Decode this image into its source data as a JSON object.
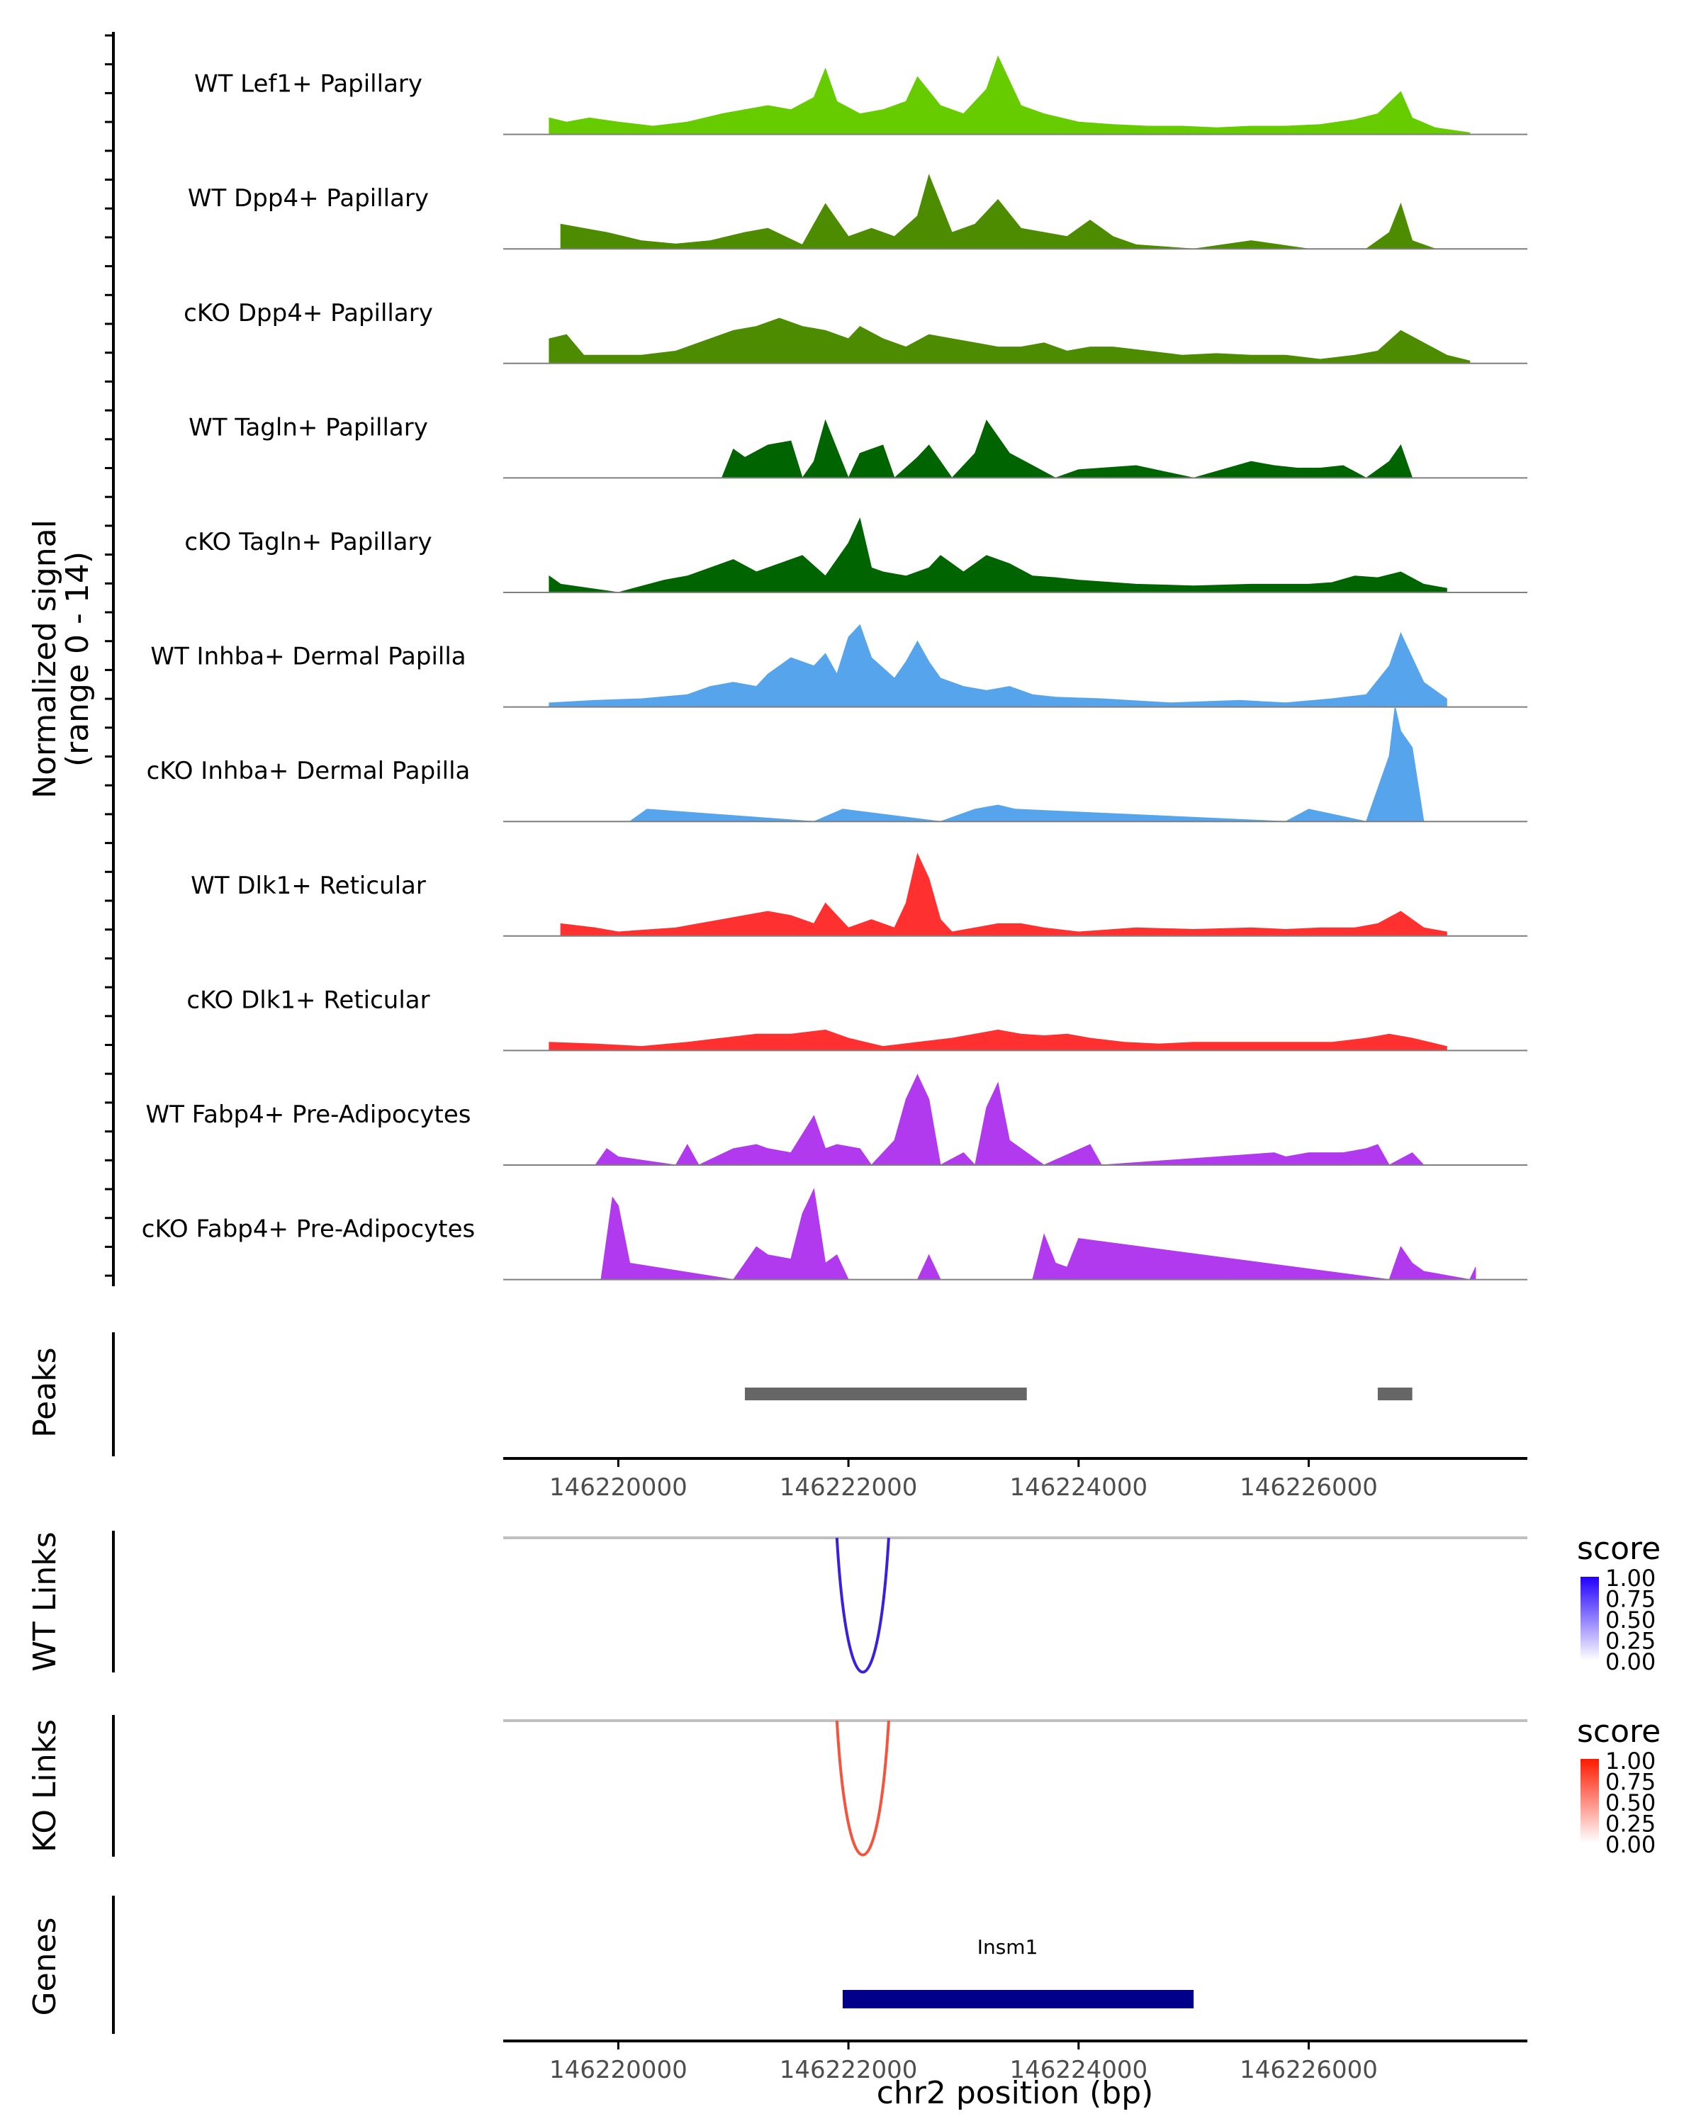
{
  "chart_data": [
    {
      "type": "area",
      "panel": "coverage",
      "ylabel_line1": "Normalized signal",
      "ylabel_line2": "(range 0 - 14)",
      "ylim": [
        0,
        14
      ],
      "xlim": [
        146219000,
        146227900
      ],
      "x_peak_positions_note": "approximate peak shapes read from tracks",
      "series": [
        {
          "name": "WT Lef1+ Papillary",
          "color": "#66CC00",
          "x": [
            146219400,
            146219550,
            146219750,
            146220000,
            146220300,
            146220600,
            146220900,
            146221100,
            146221300,
            146221500,
            146221700,
            146221800,
            146221900,
            146222100,
            146222300,
            146222500,
            146222600,
            146222800,
            146223000,
            146223200,
            146223300,
            146223500,
            146223700,
            146224000,
            146224300,
            146224600,
            146224900,
            146225200,
            146225500,
            146225800,
            146226100,
            146226400,
            146226600,
            146226800,
            146226900,
            146227100,
            146227300,
            146227400
          ],
          "values": [
            2,
            1.5,
            2,
            1.5,
            1,
            1.5,
            2.5,
            3,
            3.5,
            3,
            4.5,
            8,
            4,
            2.5,
            3,
            4,
            7,
            3.5,
            2.5,
            5.5,
            9.5,
            3.5,
            2.5,
            1.5,
            1.2,
            1,
            1,
            0.8,
            1,
            1,
            1.2,
            1.8,
            2.5,
            5.2,
            2,
            0.8,
            0.4,
            0.2
          ]
        },
        {
          "name": "WT Dpp4+ Papillary",
          "color": "#4D8C00",
          "x": [
            146219500,
            146219700,
            146219900,
            146220200,
            146220500,
            146220800,
            146221100,
            146221300,
            146221600,
            146221800,
            146222000,
            146222200,
            146222400,
            146222600,
            146222700,
            146222900,
            146223100,
            146223300,
            146223500,
            146223700,
            146223900,
            146224100,
            146224300,
            146224500,
            146225000,
            146225500,
            146226000,
            146226500,
            146226700,
            146226800,
            146226900,
            146227100
          ],
          "values": [
            3,
            2.5,
            2,
            1,
            0.6,
            1,
            2,
            2.5,
            0.5,
            5.5,
            1.5,
            2.5,
            1.5,
            4,
            9,
            2,
            3,
            6,
            2.5,
            2,
            1.5,
            3.5,
            1.5,
            0.5,
            0,
            1,
            0,
            0,
            2,
            5.5,
            1,
            0
          ]
        },
        {
          "name": "cKO Dpp4+ Papillary",
          "color": "#4D8C00",
          "x": [
            146219400,
            146219550,
            146219700,
            146220200,
            146220500,
            146220800,
            146221000,
            146221200,
            146221400,
            146221600,
            146221800,
            146222000,
            146222100,
            146222300,
            146222500,
            146222700,
            146222900,
            146223100,
            146223300,
            146223500,
            146223700,
            146223900,
            146224100,
            146224300,
            146224600,
            146224900,
            146225200,
            146225500,
            146225800,
            146226100,
            146226400,
            146226600,
            146226800,
            146227000,
            146227200,
            146227400
          ],
          "values": [
            3,
            3.5,
            1,
            1,
            1.5,
            3,
            4,
            4.5,
            5.5,
            4.5,
            4,
            3,
            4.5,
            3,
            2,
            3.5,
            3,
            2.5,
            2,
            2,
            2.5,
            1.5,
            2,
            2,
            1.5,
            1,
            1.2,
            1,
            1,
            0.5,
            1,
            1.5,
            4,
            2.5,
            1,
            0.3
          ]
        },
        {
          "name": "WT Tagln+ Papillary",
          "color": "#006400",
          "x": [
            146220900,
            146221000,
            146221100,
            146221300,
            146221500,
            146221600,
            146221700,
            146221800,
            146222000,
            146222100,
            146222300,
            146222400,
            146222600,
            146222700,
            146222900,
            146223100,
            146223200,
            146223400,
            146223600,
            146223800,
            146224000,
            146224500,
            146225000,
            146225500,
            146225700,
            146225900,
            146226100,
            146226300,
            146226500,
            146226700,
            146226800,
            146226900
          ],
          "values": [
            0,
            3.5,
            2.5,
            4,
            4.5,
            0,
            2,
            7,
            0,
            3,
            4,
            0,
            2.5,
            4,
            0,
            3,
            7,
            3,
            1.5,
            0,
            1,
            1.5,
            0,
            2,
            1.5,
            1.2,
            1.2,
            1.5,
            0,
            2,
            4,
            0
          ]
        },
        {
          "name": "cKO Tagln+ Papillary",
          "color": "#006400",
          "x": [
            146219400,
            146219500,
            146220000,
            146220400,
            146220600,
            146220800,
            146221000,
            146221200,
            146221400,
            146221600,
            146221800,
            146221900,
            146222000,
            146222100,
            146222200,
            146222300,
            146222500,
            146222700,
            146222800,
            146223000,
            146223200,
            146223400,
            146223600,
            146223800,
            146224000,
            146224500,
            146225000,
            146225500,
            146226000,
            146226200,
            146226400,
            146226600,
            146226800,
            146227000,
            146227200
          ],
          "values": [
            2,
            1,
            0,
            1.5,
            2,
            3,
            4,
            2.5,
            3.5,
            4.5,
            2,
            4,
            6,
            9,
            3,
            2.5,
            2,
            3,
            4.5,
            2.5,
            4.5,
            3.5,
            2,
            1.8,
            1.5,
            1,
            0.8,
            1,
            1,
            1.2,
            2,
            1.8,
            2.5,
            1,
            0.5
          ]
        },
        {
          "name": "WT Inhba+ Dermal Papilla",
          "color": "#56A5EC",
          "x": [
            146219400,
            146219800,
            146220200,
            146220600,
            146220800,
            146221000,
            146221200,
            146221300,
            146221500,
            146221700,
            146221800,
            146221900,
            146222000,
            146222100,
            146222200,
            146222400,
            146222500,
            146222600,
            146222700,
            146222800,
            146223000,
            146223200,
            146223400,
            146223600,
            146223800,
            146224200,
            146224800,
            146225400,
            146225800,
            146226200,
            146226500,
            146226700,
            146226800,
            146226900,
            146227000,
            146227200
          ],
          "values": [
            0.5,
            0.8,
            1,
            1.5,
            2.5,
            3,
            2.5,
            4,
            6,
            5,
            6.5,
            4,
            8.5,
            10,
            6,
            3.5,
            5.5,
            8,
            5.5,
            3.5,
            2.5,
            2,
            2.5,
            1.5,
            1.2,
            1,
            0.5,
            0.8,
            0.5,
            1,
            1.5,
            5,
            9,
            6,
            3,
            1
          ]
        },
        {
          "name": "cKO Inhba+ Dermal Papilla",
          "color": "#56A5EC",
          "x": [
            146219450,
            146220100,
            146220250,
            146221700,
            146221950,
            146222800,
            146223100,
            146223300,
            146223450,
            146225800,
            146226000,
            146226500,
            146226600,
            146226700,
            146226750,
            146226800,
            146226900,
            146227000
          ],
          "values": [
            0,
            0,
            1.5,
            0,
            1.5,
            0,
            1.5,
            2,
            1.5,
            0,
            1.5,
            0,
            4,
            8,
            14,
            11,
            9,
            0
          ]
        },
        {
          "name": "WT Dlk1+ Reticular",
          "color": "#FF3030",
          "x": [
            146219500,
            146219800,
            146220000,
            146220500,
            146220700,
            146220900,
            146221100,
            146221300,
            146221500,
            146221700,
            146221800,
            146221900,
            146222000,
            146222200,
            146222400,
            146222500,
            146222600,
            146222700,
            146222800,
            146222900,
            146223100,
            146223300,
            146223500,
            146223700,
            146224000,
            146224500,
            146225000,
            146225500,
            146225800,
            146226100,
            146226400,
            146226600,
            146226800,
            146227000,
            146227200
          ],
          "values": [
            1.5,
            1,
            0.5,
            1,
            1.5,
            2,
            2.5,
            3,
            2.5,
            1.5,
            4,
            2.5,
            1,
            2,
            1,
            4,
            10,
            7,
            2,
            0.5,
            1,
            1.5,
            1.5,
            1,
            0.5,
            1,
            0.8,
            1,
            0.8,
            1,
            1,
            1.5,
            3,
            1,
            0.5
          ]
        },
        {
          "name": "cKO Dlk1+ Reticular",
          "color": "#FF3030",
          "x": [
            146219400,
            146219800,
            146220200,
            146220600,
            146220900,
            146221200,
            146221500,
            146221800,
            146222000,
            146222300,
            146222600,
            146222900,
            146223100,
            146223300,
            146223500,
            146223700,
            146223900,
            146224100,
            146224400,
            146224700,
            146225000,
            146225400,
            146225800,
            146226200,
            146226500,
            146226700,
            146226900,
            146227200
          ],
          "values": [
            1,
            0.8,
            0.5,
            1,
            1.5,
            2,
            2,
            2.5,
            1.5,
            0.5,
            1,
            1.5,
            2,
            2.5,
            2,
            1.8,
            2,
            1.5,
            1,
            0.8,
            1,
            1,
            1,
            1,
            1.5,
            2,
            1.5,
            0.5
          ]
        },
        {
          "name": "WT Fabp4+ Pre-Adipocytes",
          "color": "#B23AEE",
          "x": [
            146219800,
            146219900,
            146220000,
            146220500,
            146220600,
            146220700,
            146221000,
            146221200,
            146221300,
            146221500,
            146221700,
            146221800,
            146221900,
            146222100,
            146222200,
            146222400,
            146222500,
            146222600,
            146222700,
            146222800,
            146223000,
            146223100,
            146223200,
            146223300,
            146223400,
            146223600,
            146223700,
            146224100,
            146224200,
            146225700,
            146225800,
            146226000,
            146226300,
            146226500,
            146226600,
            146226700,
            146226900,
            146227000
          ],
          "values": [
            0,
            2,
            1,
            0,
            2.5,
            0,
            2,
            2.5,
            2,
            1.5,
            6,
            2,
            2.5,
            2,
            0,
            3,
            8,
            11,
            8,
            0,
            1.5,
            0,
            7,
            10,
            3,
            1,
            0,
            2.5,
            0,
            1.5,
            1,
            1.5,
            1.5,
            2,
            2.5,
            0,
            1.5,
            0
          ]
        },
        {
          "name": "cKO Fabp4+ Pre-Adipocytes",
          "color": "#B23AEE",
          "x": [
            146219850,
            146219950,
            146220000,
            146220100,
            146221000,
            146221100,
            146221200,
            146221300,
            146221500,
            146221600,
            146221700,
            146221800,
            146221900,
            146222000,
            146222600,
            146222700,
            146222800,
            146223600,
            146223700,
            146223800,
            146223900,
            146224000,
            146226700,
            146226800,
            146226900,
            146227000,
            146227400,
            146227450
          ],
          "values": [
            0,
            10,
            9,
            2,
            0,
            2,
            4,
            3,
            2.5,
            8,
            11,
            2,
            3,
            0,
            0,
            3,
            0,
            0,
            5.5,
            2,
            1.5,
            5,
            0,
            4,
            2,
            1,
            0,
            1.5
          ]
        }
      ]
    },
    {
      "type": "bar",
      "panel": "peaks",
      "ylabel": "Peaks",
      "intervals": [
        [
          146221100,
          146223550
        ],
        [
          146226600,
          146226900
        ]
      ],
      "color": "#666666"
    },
    {
      "type": "line",
      "panel": "links",
      "ylabel": "WT Links",
      "links": [
        {
          "start": 146221900,
          "end": 146222350,
          "score": 0.85
        }
      ],
      "legend_title": "score",
      "legend_ticks": [
        "1.00",
        "0.75",
        "0.50",
        "0.25",
        "0.00"
      ],
      "color_high": "#3B1FE0"
    },
    {
      "type": "line",
      "panel": "links",
      "ylabel": "KO Links",
      "links": [
        {
          "start": 146221900,
          "end": 146222350,
          "score": 0.75
        }
      ],
      "legend_title": "score",
      "legend_ticks": [
        "1.00",
        "0.75",
        "0.50",
        "0.25",
        "0.00"
      ],
      "color_high": "#FF2200"
    },
    {
      "type": "bar",
      "panel": "genes",
      "ylabel": "Genes",
      "genes": [
        {
          "name": "Insm1",
          "start": 146221950,
          "end": 146225000,
          "color": "#00008B"
        }
      ],
      "xlabel": "chr2 position (bp)",
      "xticks": [
        146220000,
        146222000,
        146224000,
        146226000
      ],
      "xtick_labels": [
        "146220000",
        "146222000",
        "146224000",
        "146226000"
      ],
      "xlim": [
        146219000,
        146227900
      ]
    }
  ]
}
